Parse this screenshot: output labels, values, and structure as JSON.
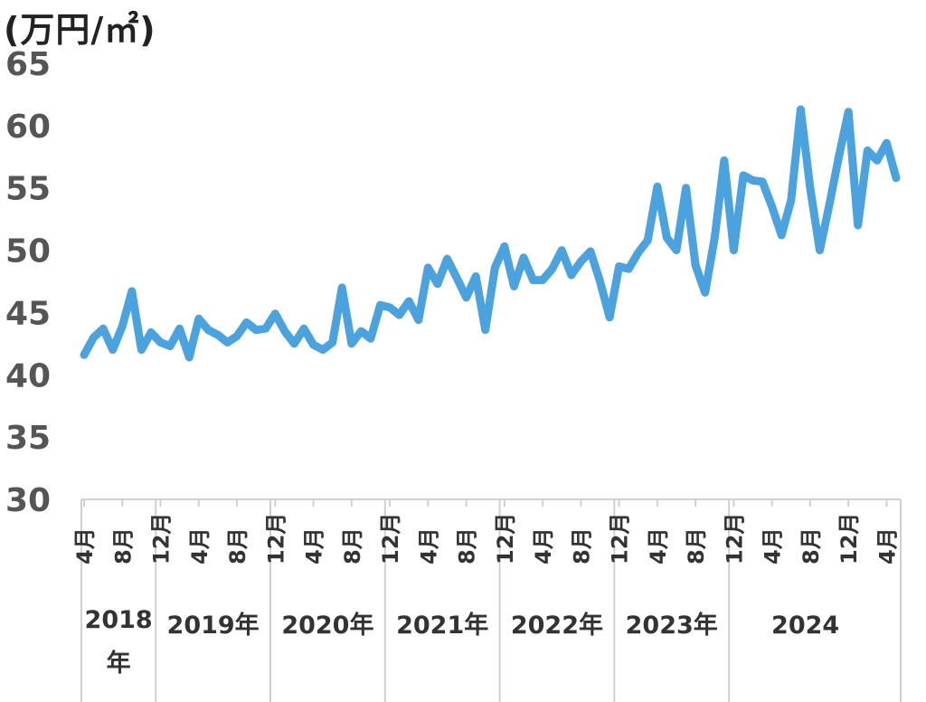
{
  "chart_data": {
    "type": "line",
    "unit_label": "(万円/㎡)",
    "ylim": [
      30,
      65
    ],
    "yticks": [
      "30",
      "35",
      "40",
      "45",
      "50",
      "55",
      "60",
      "65"
    ],
    "color": "#4aa3df",
    "month_labels": [
      {
        "i": 0,
        "label": "4月"
      },
      {
        "i": 4,
        "label": "8月"
      },
      {
        "i": 8,
        "label": "12月"
      },
      {
        "i": 12,
        "label": "4月"
      },
      {
        "i": 16,
        "label": "8月"
      },
      {
        "i": 20,
        "label": "12月"
      },
      {
        "i": 24,
        "label": "4月"
      },
      {
        "i": 28,
        "label": "8月"
      },
      {
        "i": 32,
        "label": "12月"
      },
      {
        "i": 36,
        "label": "4月"
      },
      {
        "i": 40,
        "label": "8月"
      },
      {
        "i": 44,
        "label": "12月"
      },
      {
        "i": 48,
        "label": "4月"
      },
      {
        "i": 52,
        "label": "8月"
      },
      {
        "i": 56,
        "label": "12月"
      },
      {
        "i": 60,
        "label": "4月"
      },
      {
        "i": 64,
        "label": "8月"
      },
      {
        "i": 68,
        "label": "12月"
      },
      {
        "i": 72,
        "label": "4月"
      },
      {
        "i": 76,
        "label": "8月"
      },
      {
        "i": 80,
        "label": "12月"
      },
      {
        "i": 84,
        "label": "4月"
      }
    ],
    "year_groups": [
      {
        "label": "2018\n年",
        "start": 0,
        "end": 8
      },
      {
        "label": "2019年",
        "start": 8,
        "end": 20
      },
      {
        "label": "2020年",
        "start": 20,
        "end": 32
      },
      {
        "label": "2021年",
        "start": 32,
        "end": 44
      },
      {
        "label": "2022年",
        "start": 44,
        "end": 56
      },
      {
        "label": "2023年",
        "start": 56,
        "end": 68
      },
      {
        "label": "2024",
        "start": 68,
        "end": 84
      }
    ],
    "series": [
      {
        "values": [
          41.6,
          43.0,
          43.7,
          42.0,
          43.9,
          46.7,
          42.0,
          43.4,
          42.6,
          42.3,
          43.7,
          41.4,
          44.5,
          43.6,
          43.2,
          42.6,
          43.1,
          44.2,
          43.6,
          43.7,
          44.9,
          43.5,
          42.5,
          43.7,
          42.4,
          42.0,
          42.6,
          47.0,
          42.5,
          43.5,
          42.9,
          45.6,
          45.4,
          44.8,
          45.9,
          44.4,
          48.6,
          47.3,
          49.3,
          47.8,
          46.2,
          47.9,
          43.6,
          48.6,
          50.3,
          47.1,
          49.4,
          47.6,
          47.6,
          48.5,
          50.0,
          48.0,
          49.1,
          49.9,
          47.5,
          44.6,
          48.7,
          48.5,
          49.8,
          50.8,
          55.1,
          51.0,
          50.0,
          55.0,
          48.8,
          46.6,
          51.0,
          57.2,
          50.0,
          56.0,
          55.6,
          55.5,
          53.5,
          51.2,
          54.0,
          61.3,
          55.0,
          50.0,
          53.6,
          57.5,
          61.1,
          52.0,
          58.0,
          57.2,
          58.6,
          55.8
        ]
      }
    ]
  }
}
